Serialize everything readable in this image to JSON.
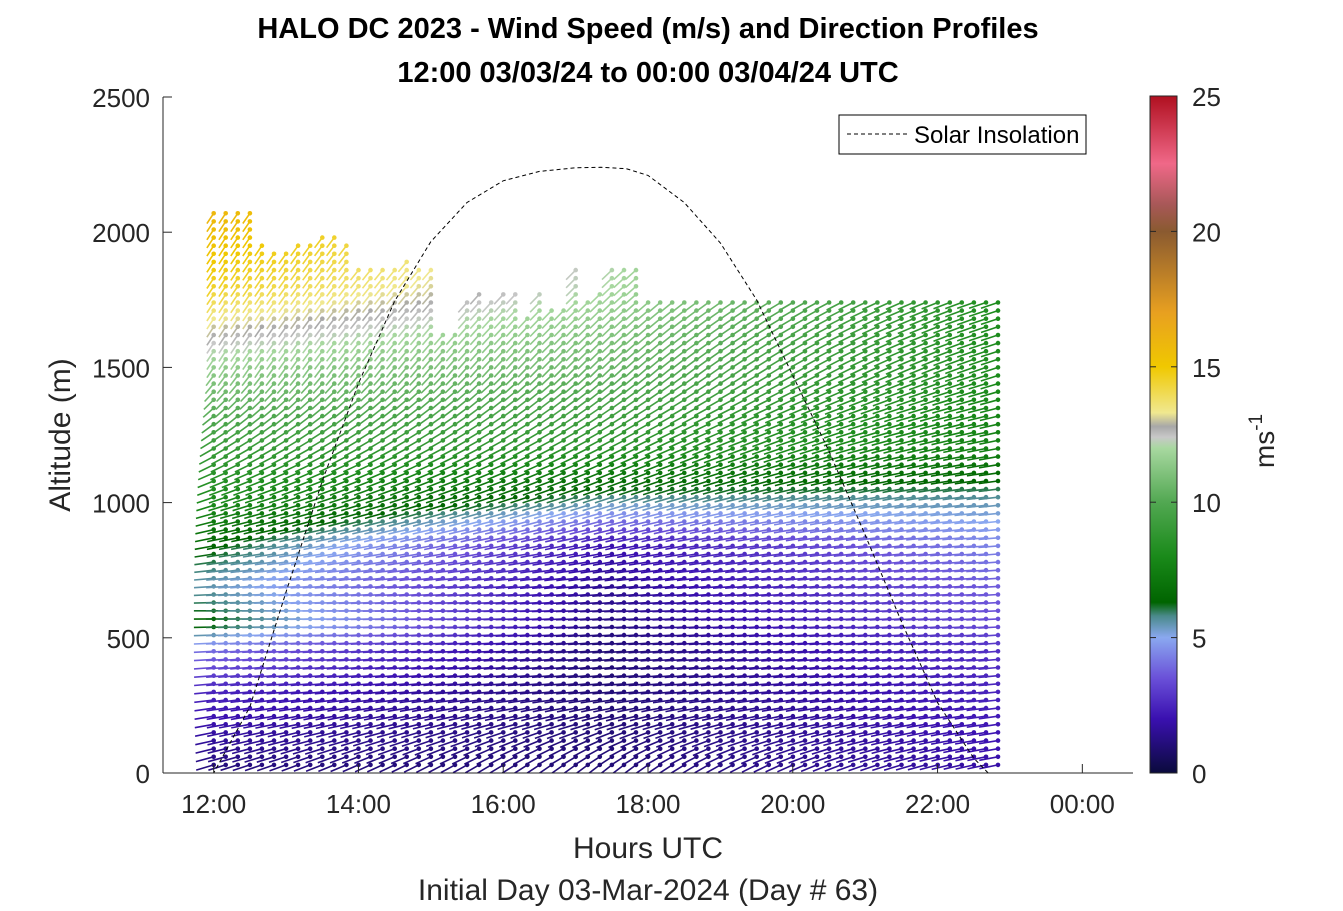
{
  "chart_data": {
    "type": "wind-barb-profile",
    "title_line1": "HALO DC 2023 - Wind Speed (m/s) and Direction Profiles",
    "title_line2": "12:00 03/03/24 to 00:00 03/04/24  UTC",
    "xlabel": "Hours UTC",
    "xlabel2": "Initial Day 03-Mar-2024 (Day # 63)",
    "ylabel": "Altitude (m)",
    "colorbar_label": "ms",
    "colorbar_label_exp": "-1",
    "xlim": [
      11.3,
      24.7
    ],
    "ylim": [
      0,
      2500
    ],
    "x_ticks": [
      12,
      14,
      16,
      18,
      20,
      22,
      24
    ],
    "x_tick_labels": [
      "12:00",
      "14:00",
      "16:00",
      "18:00",
      "20:00",
      "22:00",
      "00:00"
    ],
    "y_ticks": [
      0,
      500,
      1000,
      1500,
      2000,
      2500
    ],
    "y_tick_labels": [
      "0",
      "500",
      "1000",
      "1500",
      "2000",
      "2500"
    ],
    "cb_ticks": [
      0,
      5,
      10,
      15,
      20,
      25
    ],
    "cb_tick_labels": [
      "0",
      "5",
      "10",
      "15",
      "20",
      "25"
    ],
    "cb_range": [
      0,
      25
    ],
    "colormap_stops": [
      {
        "v": 0,
        "c": "#0a0a3c"
      },
      {
        "v": 2,
        "c": "#3a10b0"
      },
      {
        "v": 3.5,
        "c": "#6a50d8"
      },
      {
        "v": 5,
        "c": "#8aa8f0"
      },
      {
        "v": 5.8,
        "c": "#4a8a8a"
      },
      {
        "v": 6.3,
        "c": "#006400"
      },
      {
        "v": 8,
        "c": "#1a8a1a"
      },
      {
        "v": 10,
        "c": "#52a852"
      },
      {
        "v": 12,
        "c": "#a8d8a0"
      },
      {
        "v": 12.4,
        "c": "#c8c8c8"
      },
      {
        "v": 12.8,
        "c": "#a8a8a8"
      },
      {
        "v": 13.3,
        "c": "#f0e890"
      },
      {
        "v": 15,
        "c": "#f0c800"
      },
      {
        "v": 17,
        "c": "#e8a020"
      },
      {
        "v": 20,
        "c": "#8a5a30"
      },
      {
        "v": 21,
        "c": "#a85858"
      },
      {
        "v": 22.5,
        "c": "#f06888"
      },
      {
        "v": 25,
        "c": "#b01020"
      }
    ],
    "legend": {
      "entries": [
        "Solar Insolation"
      ],
      "location": "top-right"
    },
    "solar_insolation": {
      "x": [
        11.3,
        12.0,
        12.5,
        13.0,
        13.5,
        14.0,
        14.5,
        15.0,
        15.5,
        16.0,
        16.5,
        17.0,
        17.35,
        17.7,
        18.0,
        18.5,
        19.0,
        19.5,
        20.0,
        20.5,
        21.0,
        21.5,
        22.0,
        22.5,
        22.7,
        23.0,
        24.7
      ],
      "y": [
        0,
        0,
        245,
        670,
        1080,
        1440,
        1745,
        1965,
        2110,
        2190,
        2225,
        2238,
        2240,
        2235,
        2210,
        2110,
        1960,
        1750,
        1470,
        1190,
        880,
        560,
        260,
        55,
        0,
        0,
        0
      ]
    },
    "time_range": [
      12.0,
      23.0
    ],
    "time_step_hours": 0.1667,
    "altitude_step_m": 30,
    "profile_top_m": [
      2080,
      2080,
      2080,
      2080,
      1960,
      1940,
      1920,
      1950,
      1970,
      2000,
      2000,
      1950,
      1880,
      1880,
      1870,
      1870,
      1910,
      1880,
      1860,
      1640,
      1620,
      1760,
      1790,
      1760,
      1780,
      1770,
      1700,
      1790,
      1720,
      1720,
      1860,
      1760,
      1790,
      1870,
      1870,
      1880,
      1750,
      1750,
      1750,
      1750,
      1750,
      1750,
      1750,
      1750,
      1750,
      1750,
      1750,
      1750,
      1750,
      1750,
      1750,
      1750,
      1750,
      1750,
      1750,
      1750,
      1750,
      1750,
      1750,
      1750,
      1750,
      1750,
      1750,
      1750,
      1750,
      1750,
      1750
    ],
    "speed_profile": {
      "altitudes_m": [
        0,
        300,
        450,
        550,
        700,
        850,
        1000,
        1200,
        1500,
        1800,
        2100
      ],
      "early_ms": [
        1.0,
        2.5,
        4.0,
        6.5,
        5.5,
        6.5,
        8.0,
        9.0,
        11.5,
        14.5,
        16.0
      ],
      "mid_ms": [
        1.0,
        1.0,
        1.0,
        1.2,
        1.5,
        2.0,
        5.5,
        8.5,
        10.5,
        12.0,
        12.5
      ],
      "late_ms": [
        1.8,
        2.5,
        2.8,
        3.5,
        3.8,
        4.5,
        5.5,
        7.5,
        8.0,
        8.0,
        8.0
      ]
    },
    "direction_profile_deg": {
      "altitudes_m": [
        0,
        300,
        600,
        1000,
        1500,
        2000
      ],
      "early": [
        300,
        280,
        270,
        300,
        340,
        340
      ],
      "mid": [
        330,
        280,
        275,
        300,
        330,
        330
      ],
      "late": [
        290,
        280,
        275,
        280,
        300,
        300
      ]
    }
  }
}
